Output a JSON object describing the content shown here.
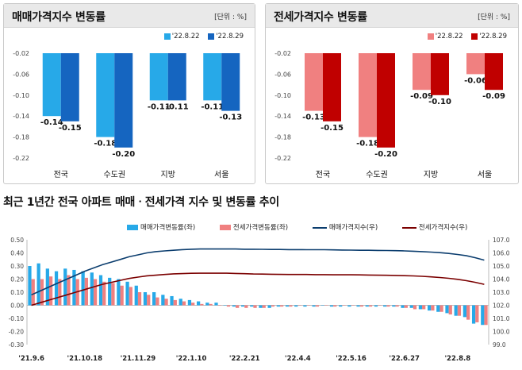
{
  "chart_data": [
    {
      "type": "bar",
      "title": "매매가격지수 변동률",
      "unit": "[단위 : %]",
      "categories": [
        "전국",
        "수도권",
        "지방",
        "서울"
      ],
      "series": [
        {
          "name": "'22.8.22",
          "values": [
            -0.14,
            -0.18,
            -0.11,
            -0.11
          ],
          "labels": [
            "-0.14",
            "-0.18",
            "-0.11",
            "-0.11"
          ],
          "color": "#27a9e8"
        },
        {
          "name": "'22.8.29",
          "values": [
            -0.15,
            -0.2,
            -0.11,
            -0.13
          ],
          "labels": [
            "-0.15",
            "-0.20",
            "-0.11",
            "-0.13"
          ],
          "color": "#1565c0"
        }
      ],
      "ylim": [
        -0.22,
        -0.02
      ],
      "yticks": [
        -0.02,
        -0.06,
        -0.1,
        -0.14,
        -0.18,
        -0.22
      ],
      "ytick_labels": [
        "-0.02",
        "-0.06",
        "-0.10",
        "-0.14",
        "-0.18",
        "-0.22"
      ],
      "xlabel": "",
      "ylabel": "",
      "grid": false,
      "legend": "top-right"
    },
    {
      "type": "bar",
      "title": "전세가격지수 변동률",
      "unit": "[단위 : %]",
      "categories": [
        "전국",
        "수도권",
        "지방",
        "서울"
      ],
      "series": [
        {
          "name": "'22.8.22",
          "values": [
            -0.13,
            -0.18,
            -0.09,
            -0.06
          ],
          "labels": [
            "-0.13",
            "-0.18",
            "-0.09",
            "-0.06"
          ],
          "color": "#f08080"
        },
        {
          "name": "'22.8.29",
          "values": [
            -0.15,
            -0.2,
            -0.1,
            -0.09
          ],
          "labels": [
            "-0.15",
            "-0.20",
            "-0.10",
            "-0.09"
          ],
          "color": "#c00000"
        }
      ],
      "ylim": [
        -0.22,
        -0.02
      ],
      "yticks": [
        -0.02,
        -0.06,
        -0.1,
        -0.14,
        -0.18,
        -0.22
      ],
      "ytick_labels": [
        "-0.02",
        "-0.06",
        "-0.10",
        "-0.14",
        "-0.18",
        "-0.22"
      ],
      "xlabel": "",
      "ylabel": "",
      "grid": false,
      "legend": "top-right"
    },
    {
      "type": "bar+line",
      "title": "최근 1년간 전국 아파트 매매ㆍ전세가격 지수 및 변동률 추이",
      "x_tick_labels": [
        "'21.9.6",
        "'21.10.18",
        "'21.11.29",
        "'22.1.10",
        "'22.2.21",
        "'22.4.4",
        "'22.5.16",
        "'22.6.27",
        "'22.8.8"
      ],
      "x_tick_index": [
        0,
        6,
        12,
        18,
        24,
        30,
        36,
        42,
        48
      ],
      "n_weeks": 52,
      "y_left": {
        "lim": [
          -0.3,
          0.5
        ],
        "ticks": [
          0.5,
          0.4,
          0.3,
          0.2,
          0.1,
          0.0,
          -0.1,
          -0.2,
          -0.3
        ],
        "tick_labels": [
          "0.50",
          "0.40",
          "0.30",
          "0.20",
          "0.10",
          "0.00",
          "-0.10",
          "-0.20",
          "-0.30"
        ]
      },
      "y_right": {
        "lim": [
          99.0,
          107.0
        ],
        "ticks": [
          107.0,
          106.0,
          105.0,
          104.0,
          103.0,
          102.0,
          101.0,
          100.0,
          99.0
        ],
        "tick_labels": [
          "107.0",
          "106.0",
          "105.0",
          "104.0",
          "103.0",
          "102.0",
          "101.0",
          "100.0",
          "99.0"
        ]
      },
      "series": [
        {
          "name": "매매가격변동률(좌)",
          "kind": "bar",
          "axis": "left",
          "color": "#27a9e8",
          "values": [
            0.3,
            0.32,
            0.28,
            0.26,
            0.28,
            0.27,
            0.26,
            0.25,
            0.23,
            0.21,
            0.2,
            0.18,
            0.15,
            0.1,
            0.1,
            0.08,
            0.07,
            0.05,
            0.04,
            0.03,
            0.02,
            0.02,
            0.0,
            -0.01,
            -0.01,
            -0.01,
            -0.02,
            -0.02,
            -0.01,
            -0.01,
            -0.01,
            -0.01,
            -0.01,
            0.0,
            -0.01,
            -0.01,
            -0.01,
            -0.01,
            -0.01,
            -0.01,
            -0.01,
            -0.01,
            -0.02,
            -0.02,
            -0.03,
            -0.04,
            -0.05,
            -0.06,
            -0.08,
            -0.09,
            -0.14,
            -0.15
          ]
        },
        {
          "name": "전세가격변동률(좌)",
          "kind": "bar",
          "axis": "left",
          "color": "#f08080",
          "values": [
            0.2,
            0.2,
            0.22,
            0.2,
            0.23,
            0.2,
            0.21,
            0.2,
            0.18,
            0.17,
            0.15,
            0.14,
            0.1,
            0.08,
            0.06,
            0.05,
            0.04,
            0.03,
            0.02,
            0.01,
            0.01,
            0.0,
            -0.01,
            -0.02,
            -0.02,
            -0.02,
            -0.02,
            -0.01,
            -0.01,
            -0.01,
            0.0,
            0.0,
            -0.01,
            0.0,
            -0.01,
            0.0,
            0.0,
            -0.01,
            -0.01,
            0.0,
            -0.01,
            -0.01,
            -0.02,
            -0.03,
            -0.03,
            -0.04,
            -0.05,
            -0.07,
            -0.08,
            -0.11,
            -0.13,
            -0.15
          ]
        },
        {
          "name": "매매가격지수(우)",
          "kind": "line",
          "axis": "right",
          "color": "#0b3d6e",
          "values": [
            102.8,
            103.1,
            103.4,
            103.7,
            104.0,
            104.3,
            104.6,
            104.85,
            105.1,
            105.3,
            105.5,
            105.7,
            105.85,
            106.0,
            106.1,
            106.15,
            106.2,
            106.25,
            106.28,
            106.3,
            106.3,
            106.3,
            106.3,
            106.3,
            106.28,
            106.28,
            106.27,
            106.26,
            106.26,
            106.25,
            106.25,
            106.24,
            106.24,
            106.24,
            106.23,
            106.22,
            106.21,
            106.2,
            106.2,
            106.19,
            106.18,
            106.17,
            106.15,
            106.13,
            106.1,
            106.06,
            106.02,
            105.96,
            105.88,
            105.78,
            105.63,
            105.45
          ]
        },
        {
          "name": "전세가격지수(우)",
          "kind": "line",
          "axis": "right",
          "color": "#7b0000",
          "values": [
            102.0,
            102.2,
            102.4,
            102.6,
            102.8,
            103.0,
            103.2,
            103.4,
            103.6,
            103.75,
            103.9,
            104.05,
            104.15,
            104.25,
            104.3,
            104.35,
            104.4,
            104.42,
            104.44,
            104.45,
            104.45,
            104.45,
            104.45,
            104.43,
            104.41,
            104.39,
            104.38,
            104.37,
            104.36,
            104.35,
            104.35,
            104.35,
            104.34,
            104.34,
            104.33,
            104.33,
            104.33,
            104.32,
            104.31,
            104.3,
            104.29,
            104.28,
            104.26,
            104.24,
            104.21,
            104.17,
            104.12,
            104.06,
            103.98,
            103.88,
            103.75,
            103.6
          ]
        }
      ],
      "grid": false,
      "legend": "top"
    }
  ]
}
